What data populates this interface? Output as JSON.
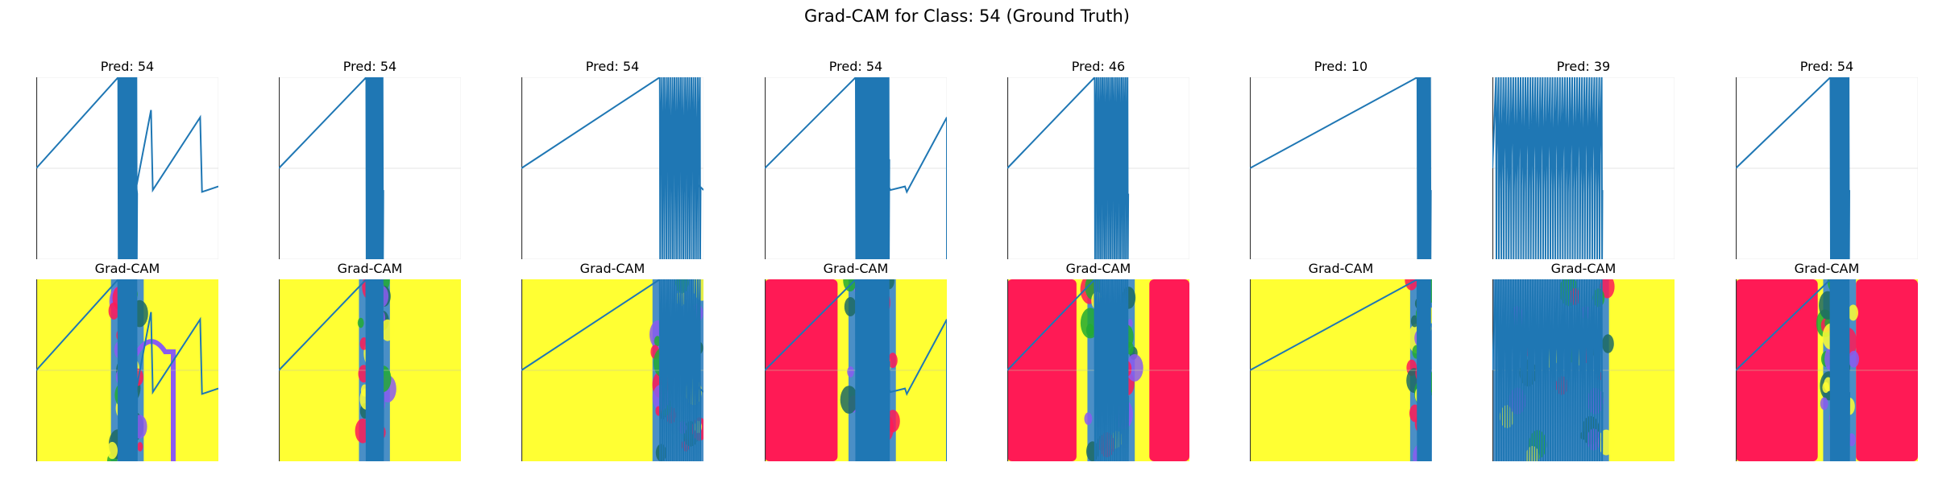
{
  "title": "Grad-CAM for Class: 54 (Ground Truth)",
  "colors": {
    "signal": "#1f77b4",
    "yellow": "#ffff33",
    "red": "#ff1a55",
    "blue": "#2a7be0",
    "green": "#22aa33",
    "teal": "#1d6a63",
    "violet": "#8a5cf0",
    "grid": "#dddddd"
  },
  "chart_data": [
    {
      "type": "line",
      "title": "Pred: 54",
      "heatmap_title": "Grad-CAM",
      "heatmap_pattern": "mixed-center"
    },
    {
      "type": "line",
      "title": "Pred: 54",
      "heatmap_title": "Grad-CAM",
      "heatmap_pattern": "yellow-center-band"
    },
    {
      "type": "line",
      "title": "Pred: 54",
      "heatmap_title": "Grad-CAM",
      "heatmap_pattern": "yellow-right-band"
    },
    {
      "type": "line",
      "title": "Pred: 54",
      "heatmap_title": "Grad-CAM",
      "heatmap_pattern": "red-left-yellow"
    },
    {
      "type": "line",
      "title": "Pred: 46",
      "heatmap_title": "Grad-CAM",
      "heatmap_pattern": "red-sides-yellow-center"
    },
    {
      "type": "line",
      "title": "Pred: 10",
      "heatmap_title": "Grad-CAM",
      "heatmap_pattern": "yellow-right-band"
    },
    {
      "type": "line",
      "title": "Pred: 39",
      "heatmap_title": "Grad-CAM",
      "heatmap_pattern": "dense-left-yellow-right"
    },
    {
      "type": "line",
      "title": "Pred: 54",
      "heatmap_title": "Grad-CAM",
      "heatmap_pattern": "red-center-band"
    }
  ]
}
